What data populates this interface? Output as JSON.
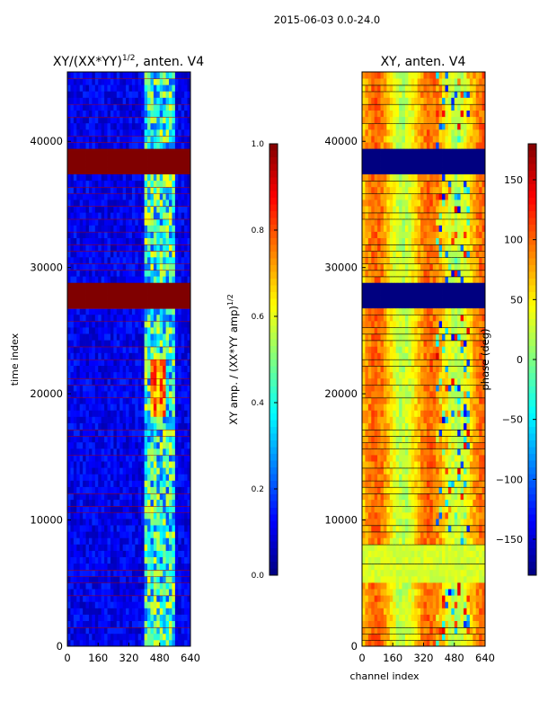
{
  "figure": {
    "suptitle": "2015-06-03 0.0-24.0"
  },
  "chart_data": [
    {
      "type": "heatmap",
      "title": "XY/(XX*YY)",
      "title_superscript": "1/2",
      "title_suffix": ", anten. V4",
      "xlabel": "",
      "ylabel": "time index",
      "xlim": [
        0,
        640
      ],
      "ylim": [
        0,
        45500
      ],
      "xticks": [
        "0",
        "160",
        "320",
        "480",
        "640"
      ],
      "yticks": [
        "0",
        "10000",
        "20000",
        "30000",
        "40000"
      ],
      "ytick_values": [
        0,
        10000,
        20000,
        30000,
        40000
      ],
      "colormap": "jet",
      "colorbar": {
        "label": "XY amp. / (XX*YY amp)",
        "label_superscript": "1/2",
        "range": [
          0.0,
          1.0
        ],
        "ticks": [
          "0.0",
          "0.2",
          "0.4",
          "0.6",
          "0.8",
          "1.0"
        ]
      },
      "description_levels": {
        "background": 0.05,
        "bright_channel_band": [
          400,
          560
        ],
        "band_level": 0.55,
        "saturated_time_blocks": [
          [
            26800,
            29000
          ],
          [
            37300,
            38200
          ],
          [
            38600,
            39400
          ]
        ],
        "saturated_level": 1.0
      }
    },
    {
      "type": "heatmap",
      "title": "XY, anten. V4",
      "xlabel": "channel index",
      "ylabel": "",
      "xlim": [
        0,
        640
      ],
      "ylim": [
        0,
        45500
      ],
      "xticks": [
        "0",
        "160",
        "320",
        "480",
        "640"
      ],
      "yticks": [
        "0",
        "10000",
        "20000",
        "30000",
        "40000"
      ],
      "ytick_values": [
        0,
        10000,
        20000,
        30000,
        40000
      ],
      "colormap": "jet",
      "colorbar": {
        "label": "phase (deg)",
        "range": [
          -180,
          180
        ],
        "ticks": [
          "150",
          "100",
          "50",
          "0",
          "−50",
          "−100",
          "−150"
        ],
        "tick_values": [
          150,
          100,
          50,
          0,
          -50,
          -100,
          -150
        ]
      },
      "description_levels": {
        "typical_phase": 60,
        "flagged_time_blocks": [
          [
            26800,
            29000
          ],
          [
            37300,
            38200
          ],
          [
            38600,
            39400
          ]
        ],
        "flagged_level": -180
      }
    }
  ]
}
